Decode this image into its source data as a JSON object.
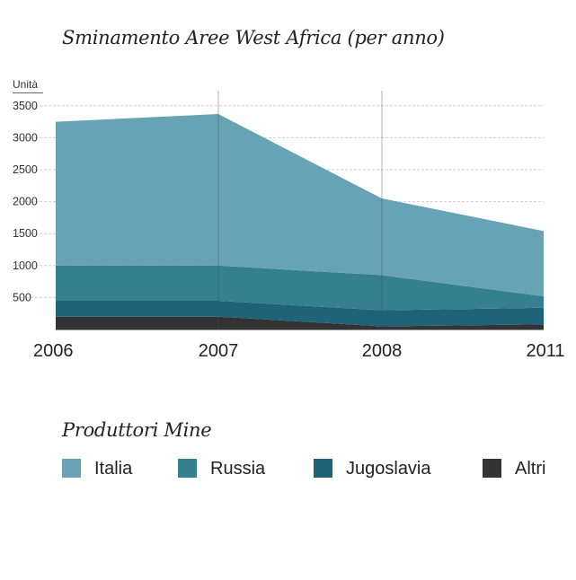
{
  "title": "Sminamento Aree West Africa (per anno)",
  "legend_title": "Produttori Mine",
  "chart_data": {
    "type": "area",
    "stacked": true,
    "title": "Sminamento Aree West Africa (per anno)",
    "ylabel": "Unità",
    "xlabel": "",
    "categories": [
      "2006",
      "2007",
      "2008",
      "2011"
    ],
    "yticks": [
      500,
      1000,
      1500,
      2000,
      2500,
      3000,
      3500
    ],
    "ylim": [
      0,
      3650
    ],
    "grid": true,
    "legend_position": "bottom",
    "series": [
      {
        "name": "Altri",
        "color": "#333333",
        "values": [
          200,
          200,
          50,
          80
        ]
      },
      {
        "name": "Jugoslavia",
        "color": "#1f6379",
        "values": [
          250,
          250,
          250,
          260
        ]
      },
      {
        "name": "Russia",
        "color": "#35808f",
        "values": [
          550,
          550,
          550,
          180
        ]
      },
      {
        "name": "Italia",
        "color": "#67a3b5",
        "values": [
          2250,
          2370,
          1200,
          1020
        ]
      }
    ]
  },
  "legend": [
    {
      "label": "Italia",
      "color": "#67a3b5"
    },
    {
      "label": "Russia",
      "color": "#35808f"
    },
    {
      "label": "Jugoslavia",
      "color": "#1f6379"
    },
    {
      "label": "Altri",
      "color": "#333333"
    }
  ]
}
